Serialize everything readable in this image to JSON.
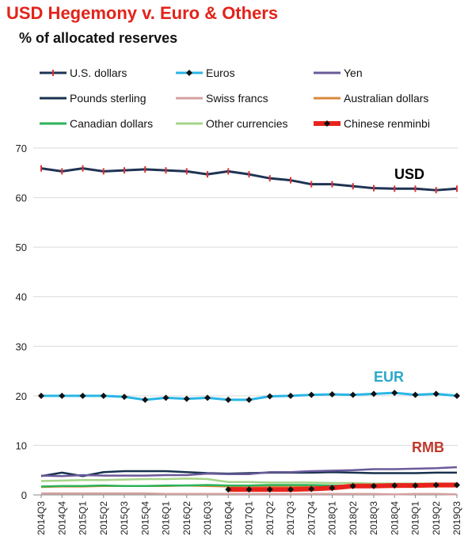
{
  "header": {
    "title": "USD Hegemony v. Euro & Others",
    "subtitle": "% of allocated reserves"
  },
  "annotations": {
    "usd": "USD",
    "eur": "EUR",
    "rmb": "RMB"
  },
  "colors": {
    "title": "#e2231a",
    "usd_label": "#000000",
    "eur_label": "#2aa7c9",
    "rmb_label": "#c0392b"
  },
  "chart_data": {
    "type": "line",
    "categories": [
      "2014Q3",
      "2014Q4",
      "2015Q1",
      "2015Q2",
      "2015Q3",
      "2015Q4",
      "2016Q1",
      "2016Q2",
      "2016Q3",
      "2016Q4",
      "2017Q1",
      "2017Q2",
      "2017Q3",
      "2017Q4",
      "2018Q1",
      "2018Q2",
      "2018Q3",
      "2018Q4",
      "2019Q1",
      "2019Q2",
      "2019Q3"
    ],
    "ylim": [
      0,
      70
    ],
    "yticks": [
      0,
      10,
      20,
      30,
      40,
      50,
      60,
      70
    ],
    "grid": true,
    "legend_position": "top",
    "series": [
      {
        "name": "U.S. dollars",
        "color": "#1f3354",
        "marker": "dash-red",
        "values": [
          65.9,
          65.3,
          65.9,
          65.3,
          65.5,
          65.7,
          65.5,
          65.3,
          64.7,
          65.3,
          64.7,
          63.9,
          63.5,
          62.7,
          62.7,
          62.3,
          61.9,
          61.8,
          61.8,
          61.5,
          61.8
        ]
      },
      {
        "name": "Euros",
        "color": "#29b6e6",
        "marker": "diamond-black",
        "values": [
          20.0,
          20.0,
          20.0,
          20.0,
          19.8,
          19.2,
          19.6,
          19.4,
          19.6,
          19.2,
          19.2,
          19.9,
          20.0,
          20.2,
          20.3,
          20.2,
          20.4,
          20.6,
          20.2,
          20.4,
          20.0
        ]
      },
      {
        "name": "Yen",
        "color": "#6a5a9a",
        "marker": "none",
        "values": [
          3.9,
          3.8,
          4.0,
          3.9,
          3.9,
          3.9,
          4.0,
          4.0,
          4.3,
          4.2,
          4.2,
          4.6,
          4.6,
          4.8,
          4.9,
          5.0,
          5.2,
          5.2,
          5.3,
          5.4,
          5.6
        ]
      },
      {
        "name": "Pounds sterling",
        "color": "#17324d",
        "marker": "none",
        "values": [
          3.8,
          4.5,
          3.8,
          4.6,
          4.8,
          4.8,
          4.8,
          4.6,
          4.4,
          4.3,
          4.4,
          4.5,
          4.5,
          4.5,
          4.6,
          4.5,
          4.4,
          4.4,
          4.4,
          4.5,
          4.5
        ]
      },
      {
        "name": "Swiss francs",
        "color": "#d4a0a0",
        "marker": "none",
        "values": [
          0.3,
          0.3,
          0.3,
          0.3,
          0.3,
          0.3,
          0.2,
          0.2,
          0.2,
          0.2,
          0.2,
          0.2,
          0.2,
          0.2,
          0.2,
          0.2,
          0.2,
          0.1,
          0.2,
          0.2,
          0.1
        ]
      },
      {
        "name": "Australian dollars",
        "color": "#d8893a",
        "marker": "none",
        "values": [
          1.6,
          1.7,
          1.7,
          1.8,
          1.8,
          1.8,
          1.8,
          1.9,
          1.8,
          1.7,
          1.8,
          1.8,
          1.8,
          1.8,
          1.7,
          1.7,
          1.7,
          1.6,
          1.7,
          1.7,
          1.7
        ]
      },
      {
        "name": "Canadian dollars",
        "color": "#2bb35a",
        "marker": "none",
        "values": [
          1.7,
          1.8,
          1.8,
          1.9,
          1.8,
          1.8,
          1.9,
          1.9,
          2.0,
          1.9,
          1.9,
          2.0,
          2.0,
          2.0,
          1.9,
          1.9,
          1.9,
          1.8,
          1.9,
          1.9,
          1.9
        ]
      },
      {
        "name": "Other currencies",
        "color": "#a5d48a",
        "marker": "none",
        "values": [
          2.8,
          2.9,
          3.0,
          3.0,
          3.1,
          3.2,
          3.2,
          3.3,
          3.2,
          2.6,
          2.6,
          2.5,
          2.5,
          2.5,
          2.4,
          2.4,
          2.3,
          2.3,
          2.3,
          2.3,
          2.3
        ]
      },
      {
        "name": "Chinese renminbi",
        "color": "#e8231c",
        "marker": "diamond-black",
        "values": [
          null,
          null,
          null,
          null,
          null,
          null,
          null,
          null,
          null,
          1.1,
          1.1,
          1.1,
          1.1,
          1.2,
          1.4,
          1.8,
          1.8,
          1.9,
          1.9,
          2.0,
          2.0
        ]
      }
    ]
  }
}
